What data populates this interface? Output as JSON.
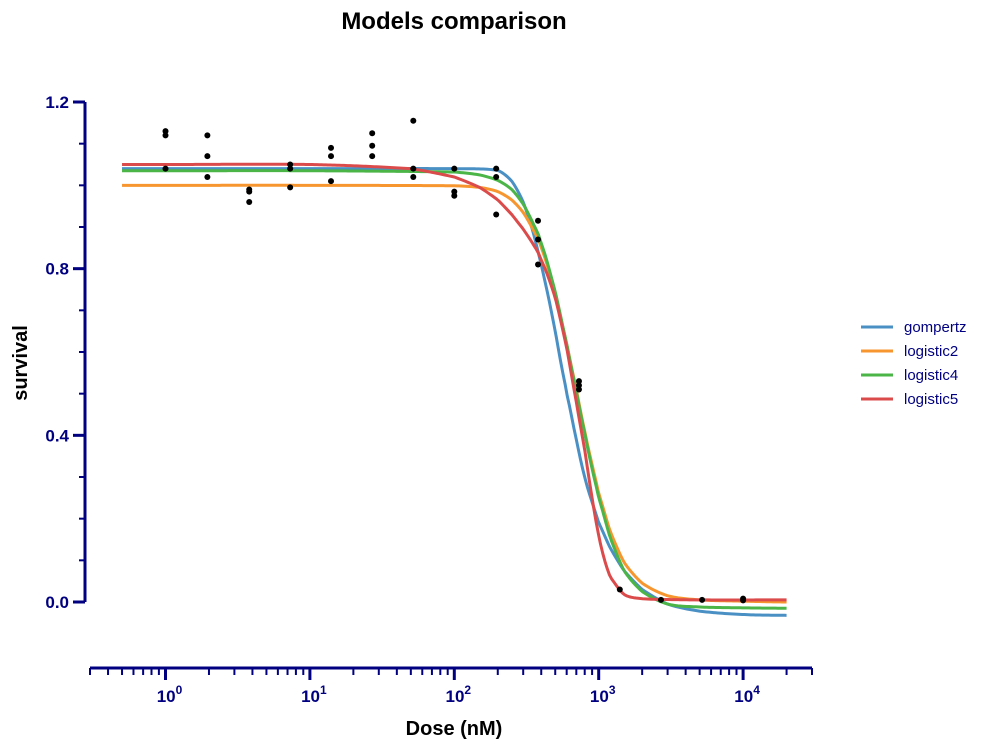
{
  "colors": {
    "axis": "#000080",
    "points": "#000000",
    "gompertz": "#4a90c4",
    "logistic2": "#f7962e",
    "logistic4": "#4bb548",
    "logistic5": "#dc4b4b"
  },
  "chart_data": {
    "type": "line",
    "title": "Models comparison",
    "xlabel": "Dose (nM)",
    "ylabel": "survival",
    "xscale": "log10",
    "xlim": [
      0.3,
      30000
    ],
    "ylim": [
      -0.2,
      1.2
    ],
    "y_ticks": [
      0.0,
      0.4,
      0.8,
      1.2
    ],
    "y_tick_labels": [
      "0.0",
      "0.4",
      "0.8",
      "1.2"
    ],
    "x_ticks": [
      1,
      10,
      100,
      1000,
      10000
    ],
    "x_tick_labels": [
      {
        "base": "10",
        "exp": "0"
      },
      {
        "base": "10",
        "exp": "1"
      },
      {
        "base": "10",
        "exp": "2"
      },
      {
        "base": "10",
        "exp": "3"
      },
      {
        "base": "10",
        "exp": "4"
      }
    ],
    "grid": false,
    "legend_position": "right",
    "legend": [
      "gompertz",
      "logistic2",
      "logistic4",
      "logistic5"
    ],
    "points": {
      "x": [
        1,
        1,
        1,
        1.95,
        1.95,
        1.95,
        3.8,
        3.8,
        3.8,
        7.3,
        7.3,
        7.3,
        14,
        14,
        14,
        27,
        27,
        27,
        52,
        52,
        52,
        100,
        100,
        100,
        195,
        195,
        195,
        380,
        380,
        380,
        730,
        730,
        730,
        1400,
        2700,
        5200,
        10000,
        10000
      ],
      "y": [
        1.13,
        1.12,
        1.04,
        1.12,
        1.07,
        1.02,
        0.99,
        0.985,
        0.96,
        1.05,
        1.04,
        0.995,
        1.09,
        1.07,
        1.01,
        1.125,
        1.095,
        1.07,
        1.155,
        1.04,
        1.02,
        1.04,
        0.985,
        0.975,
        1.04,
        1.02,
        0.93,
        0.915,
        0.87,
        0.81,
        0.53,
        0.52,
        0.51,
        0.03,
        0.005,
        0.005,
        0.008,
        0.004
      ]
    },
    "series": [
      {
        "name": "gompertz",
        "x": [
          0.5,
          1,
          10,
          100,
          200,
          250,
          300,
          350,
          400,
          450,
          500,
          550,
          600,
          700,
          800,
          900,
          1000,
          1200,
          1500,
          2000,
          3000,
          5000,
          10000,
          20000
        ],
        "y": [
          1.04,
          1.04,
          1.04,
          1.04,
          1.036,
          1.01,
          0.96,
          0.89,
          0.81,
          0.73,
          0.65,
          0.57,
          0.5,
          0.39,
          0.3,
          0.24,
          0.19,
          0.13,
          0.075,
          0.03,
          -0.005,
          -0.022,
          -0.03,
          -0.032
        ]
      },
      {
        "name": "logistic2",
        "x": [
          0.5,
          1,
          10,
          100,
          150,
          200,
          250,
          300,
          350,
          400,
          500,
          600,
          700,
          800,
          900,
          1000,
          1200,
          1500,
          2000,
          3000,
          5000,
          10000,
          20000
        ],
        "y": [
          1.0,
          1.0,
          1.0,
          0.999,
          0.995,
          0.985,
          0.965,
          0.935,
          0.895,
          0.85,
          0.74,
          0.62,
          0.51,
          0.41,
          0.33,
          0.26,
          0.17,
          0.095,
          0.045,
          0.015,
          0.005,
          0.002,
          0.0
        ]
      },
      {
        "name": "logistic4",
        "x": [
          0.5,
          1,
          10,
          100,
          150,
          200,
          250,
          300,
          350,
          400,
          500,
          600,
          700,
          800,
          900,
          1000,
          1200,
          1500,
          2000,
          3000,
          5000,
          10000,
          20000
        ],
        "y": [
          1.035,
          1.035,
          1.035,
          1.032,
          1.025,
          1.012,
          0.99,
          0.955,
          0.91,
          0.86,
          0.745,
          0.62,
          0.505,
          0.405,
          0.32,
          0.25,
          0.155,
          0.075,
          0.025,
          -0.005,
          -0.012,
          -0.014,
          -0.015
        ]
      },
      {
        "name": "logistic5",
        "x": [
          0.5,
          1,
          10,
          50,
          100,
          150,
          200,
          250,
          300,
          350,
          400,
          500,
          600,
          700,
          800,
          900,
          1000,
          1100,
          1200,
          1500,
          2000,
          3000,
          5000,
          20000
        ],
        "y": [
          1.05,
          1.05,
          1.05,
          1.04,
          1.02,
          0.995,
          0.965,
          0.93,
          0.895,
          0.86,
          0.82,
          0.73,
          0.61,
          0.48,
          0.365,
          0.25,
          0.16,
          0.1,
          0.06,
          0.018,
          0.008,
          0.006,
          0.005,
          0.005
        ]
      }
    ]
  }
}
